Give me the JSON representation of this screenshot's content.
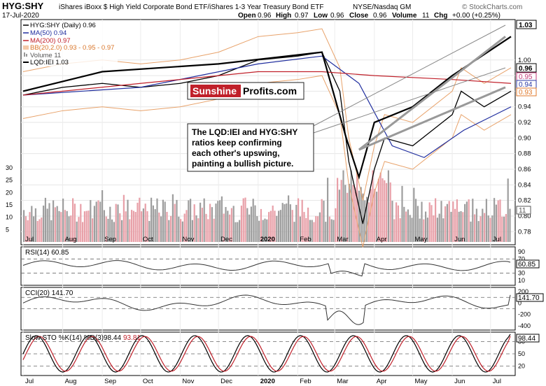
{
  "header": {
    "symbol": "HYG:SHY",
    "description": "iShares iBoxx $ High Yield Corporate Bond ETF/iShares 1-3 Year Treasury Bond ETF",
    "exchange": "NYSE/Nasdaq GM",
    "watermark": "© StockCharts.com",
    "date": "17-Jul-2020",
    "ohlc": {
      "open_label": "Open",
      "open": "0.96",
      "high_label": "High",
      "high": "0.97",
      "low_label": "Low",
      "low": "0.96",
      "close_label": "Close",
      "close": "0.96",
      "volume_label": "Volume",
      "volume": "11",
      "chg_label": "Chg",
      "chg": "+0.00 (+0.25%)"
    }
  },
  "legend": {
    "main": "HYG:SHY (Daily) 0.96",
    "ma50": "MA(50) 0.94",
    "ma200": "MA(200) 0.97",
    "bb": "BB(20,2.0) 0.93 - 0.95 - 0.97",
    "volume": "Volume 11",
    "lqd": "LQD:IEI 1.03"
  },
  "annotation": {
    "brand_part1": "Sunshine",
    "brand_part2": "Profits.com",
    "lines": [
      "The LQD:IEI and HYG:SHY",
      "ratios keep confirming",
      "each other's upswing,",
      "painting a bullish picture."
    ]
  },
  "right_tags": [
    {
      "text": "1.03",
      "color": "#000000"
    },
    {
      "text": "0.96",
      "color": "#000000"
    },
    {
      "text": "0.95",
      "color": "#c43a7a"
    },
    {
      "text": "0.94",
      "color": "#2a3aa6"
    },
    {
      "text": "0.93",
      "color": "#e0792b"
    },
    {
      "text": "11",
      "color": "#555555"
    }
  ],
  "x_months": [
    "Jul",
    "Aug",
    "Sep",
    "Oct",
    "Nov",
    "Dec",
    "2020",
    "Feb",
    "Mar",
    "Apr",
    "May",
    "Jun",
    "Jul"
  ],
  "panels": {
    "rsi": {
      "label": "RSI(14) 60.85",
      "value_tag": "60.85",
      "ticks": [
        "90",
        "70",
        "50",
        "30",
        "10"
      ]
    },
    "cci": {
      "label": "CCI(20) 141.70",
      "value_tag": "141.70",
      "ticks": [
        "200",
        "0",
        "-200",
        "-400"
      ]
    },
    "sto": {
      "label": "Slow STO %K(14) %D(3)",
      "k": "98.44",
      "d": "93.81",
      "value_tag": "98.44",
      "ticks": [
        "80",
        "50",
        "20"
      ]
    }
  },
  "colors": {
    "price": "#000000",
    "ma50": "#1f2d9e",
    "ma200": "#c0202a",
    "bb": "#e8a26a",
    "volume_up": "#9e9e9e",
    "volume_down": "#e8a0a8",
    "lqd": "#000000",
    "brand_red": "#c0202a",
    "positive_fill": "#6f8f5f",
    "negative_fill": "#8a4a45"
  },
  "chart_data": [
    {
      "type": "line",
      "title": "HYG:SHY (Daily)",
      "x_range": [
        "2019-07-01",
        "2020-07-17"
      ],
      "ylim": [
        0.765,
        1.05
      ],
      "y_ticks": [
        0.78,
        0.8,
        0.82,
        0.84,
        0.86,
        0.88,
        0.9,
        0.92,
        0.94,
        0.96,
        0.98,
        1.0
      ],
      "series": [
        {
          "name": "HYG:SHY",
          "x": [
            "2019-07-01",
            "2019-08-01",
            "2019-09-01",
            "2019-10-01",
            "2019-11-01",
            "2019-12-01",
            "2020-01-01",
            "2020-02-01",
            "2020-02-20",
            "2020-03-05",
            "2020-03-12",
            "2020-03-23",
            "2020-04-01",
            "2020-04-09",
            "2020-05-01",
            "2020-06-01",
            "2020-06-08",
            "2020-06-26",
            "2020-07-17"
          ],
          "values": [
            0.955,
            0.965,
            0.97,
            0.965,
            0.97,
            0.98,
            1.0,
            1.005,
            1.01,
            0.96,
            0.87,
            0.79,
            0.86,
            0.9,
            0.89,
            0.93,
            0.96,
            0.94,
            0.96
          ]
        },
        {
          "name": "MA(50)",
          "x": [
            "2019-07-01",
            "2019-10-01",
            "2020-01-01",
            "2020-02-20",
            "2020-03-20",
            "2020-04-15",
            "2020-05-10",
            "2020-06-10",
            "2020-07-17"
          ],
          "values": [
            0.955,
            0.965,
            0.995,
            1.005,
            0.97,
            0.89,
            0.875,
            0.91,
            0.94
          ]
        },
        {
          "name": "MA(200)",
          "x": [
            "2019-07-01",
            "2019-10-01",
            "2020-01-01",
            "2020-02-20",
            "2020-04-01",
            "2020-06-01",
            "2020-07-17"
          ],
          "values": [
            0.955,
            0.97,
            0.985,
            0.985,
            0.98,
            0.975,
            0.97
          ]
        },
        {
          "name": "LQD:IEI",
          "x": [
            "2019-07-01",
            "2019-09-01",
            "2019-12-01",
            "2020-02-20",
            "2020-03-10",
            "2020-03-20",
            "2020-04-01",
            "2020-05-01",
            "2020-06-01",
            "2020-07-17"
          ],
          "values": [
            0.96,
            0.985,
            0.995,
            1.01,
            0.9,
            0.85,
            0.92,
            0.94,
            0.98,
            1.03
          ]
        }
      ]
    },
    {
      "type": "bar",
      "title": "Volume",
      "y_ticks": [
        5,
        10,
        15,
        20,
        25,
        30
      ],
      "last_value": 11
    },
    {
      "type": "line",
      "title": "RSI(14)",
      "ylim": [
        0,
        100
      ],
      "y_ticks": [
        10,
        30,
        50,
        70,
        90
      ],
      "last_value": 60.85
    },
    {
      "type": "line",
      "title": "CCI(20)",
      "ylim": [
        -450,
        250
      ],
      "y_ticks": [
        -400,
        -200,
        0,
        200
      ],
      "last_value": 141.7
    },
    {
      "type": "line",
      "title": "Slow STO %K(14) %D(3)",
      "ylim": [
        0,
        100
      ],
      "y_ticks": [
        20,
        50,
        80
      ],
      "series": [
        {
          "name": "%K",
          "last_value": 98.44
        },
        {
          "name": "%D",
          "last_value": 93.81
        }
      ]
    }
  ]
}
